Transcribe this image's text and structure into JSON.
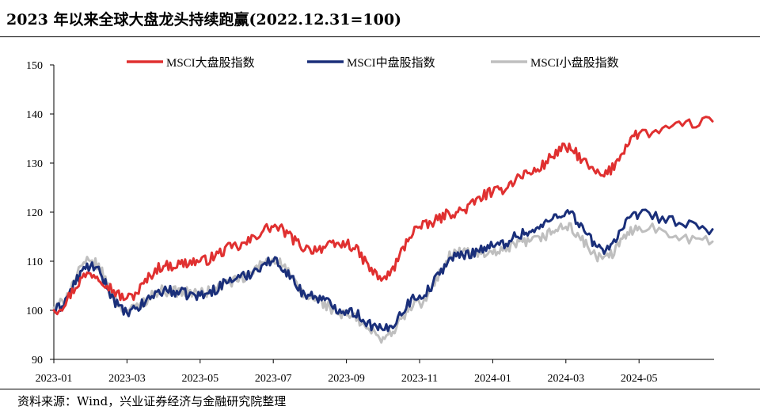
{
  "title": "2023 年以来全球大盘龙头持续跑赢(2022.12.31=100)",
  "source": "资料来源：Wind，兴业证券经济与金融研究院整理",
  "chart_data": {
    "type": "line",
    "title": "2023 年以来全球大盘龙头持续跑赢(2022.12.31=100)",
    "xlabel": "",
    "ylabel": "",
    "ylim": [
      90,
      150
    ],
    "yticks": [
      90,
      100,
      110,
      120,
      130,
      140,
      150
    ],
    "xticks": [
      "2023-01",
      "2023-03",
      "2023-05",
      "2023-07",
      "2023-09",
      "2023-11",
      "2024-01",
      "2024-03",
      "2024-05"
    ],
    "x": [
      "2023-01",
      "2023-02",
      "2023-03",
      "2023-04",
      "2023-05",
      "2023-06",
      "2023-07",
      "2023-08",
      "2023-09",
      "2023-10",
      "2023-11",
      "2023-12",
      "2024-01",
      "2024-02",
      "2024-03",
      "2024-04",
      "2024-05",
      "2024-06"
    ],
    "grid": false,
    "legend_position": "top",
    "series": [
      {
        "name": "MSCI大盘股指数",
        "color": "#e03030",
        "values": [
          100,
          107.5,
          102.5,
          109,
          110,
          113,
          117,
          112.5,
          113.5,
          106.5,
          117,
          120,
          124,
          128,
          133,
          127.5,
          136,
          138.5
        ]
      },
      {
        "name": "MSCI中盘股指数",
        "color": "#1a2f7a",
        "values": [
          100,
          109,
          99.5,
          104,
          103,
          106.5,
          110,
          103,
          100,
          96,
          103,
          111,
          113,
          116,
          120,
          112.5,
          119.5,
          116.5
        ]
      },
      {
        "name": "MSCI小盘股指数",
        "color": "#bfbfbf",
        "values": [
          100.5,
          110,
          100,
          104,
          103.5,
          106,
          110.5,
          102.5,
          99,
          94.5,
          101.5,
          112,
          111.5,
          114,
          117,
          110.5,
          117,
          114
        ]
      }
    ]
  }
}
